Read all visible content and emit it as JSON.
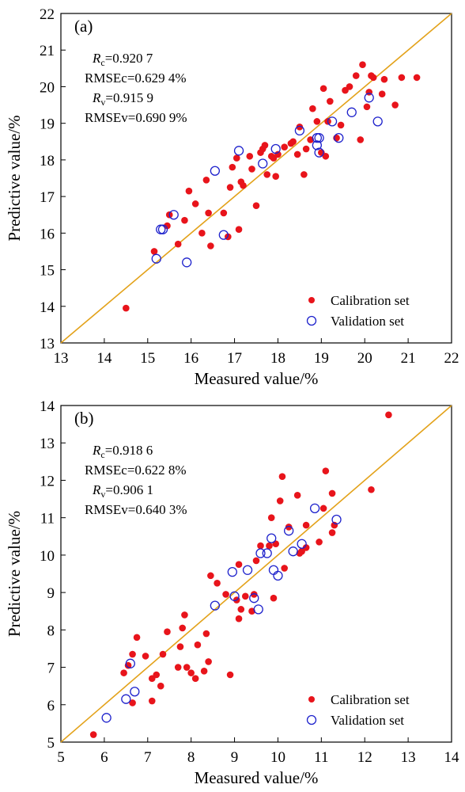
{
  "chart_data": [
    {
      "type": "scatter",
      "panel_label": "(a)",
      "xlabel": "Measured value/%",
      "ylabel": "Predictive value/%",
      "xlim": [
        13,
        22
      ],
      "ylim": [
        13,
        22
      ],
      "xticks": [
        "13",
        "14",
        "15",
        "16",
        "17",
        "18",
        "19",
        "20",
        "21",
        "22"
      ],
      "yticks": [
        "13",
        "14",
        "15",
        "16",
        "17",
        "18",
        "19",
        "20",
        "21",
        "22"
      ],
      "grid": false,
      "legend_position": "bottom-right",
      "reference_line": {
        "from": [
          13,
          13
        ],
        "to": [
          22,
          22
        ],
        "color": "#E3A21A"
      },
      "stats": [
        {
          "sym": "R",
          "sub": "c",
          "text": "=0.920 7"
        },
        {
          "text": "RMSEc=0.629 4%"
        },
        {
          "sym": "R",
          "sub": "v",
          "text": "=0.915 9"
        },
        {
          "text": "RMSEv=0.690 9%"
        }
      ],
      "series": [
        {
          "name": "Calibration set",
          "marker": "filled-circle",
          "color": "#E8141B",
          "points": [
            [
              14.5,
              13.95
            ],
            [
              15.15,
              15.5
            ],
            [
              15.45,
              16.2
            ],
            [
              15.5,
              16.5
            ],
            [
              15.7,
              15.7
            ],
            [
              15.85,
              16.35
            ],
            [
              15.95,
              17.15
            ],
            [
              16.1,
              16.8
            ],
            [
              16.25,
              16.0
            ],
            [
              16.35,
              17.45
            ],
            [
              16.4,
              16.55
            ],
            [
              16.45,
              15.65
            ],
            [
              16.75,
              16.55
            ],
            [
              16.85,
              15.9
            ],
            [
              16.9,
              17.25
            ],
            [
              16.95,
              17.8
            ],
            [
              17.05,
              18.05
            ],
            [
              17.1,
              16.1
            ],
            [
              17.15,
              17.4
            ],
            [
              17.2,
              17.3
            ],
            [
              17.35,
              18.1
            ],
            [
              17.4,
              17.75
            ],
            [
              17.5,
              16.75
            ],
            [
              17.6,
              18.2
            ],
            [
              17.65,
              18.3
            ],
            [
              17.7,
              18.4
            ],
            [
              17.75,
              17.6
            ],
            [
              17.85,
              18.1
            ],
            [
              17.9,
              18.05
            ],
            [
              17.95,
              17.55
            ],
            [
              18.0,
              18.15
            ],
            [
              18.15,
              18.35
            ],
            [
              18.3,
              18.45
            ],
            [
              18.35,
              18.5
            ],
            [
              18.45,
              18.15
            ],
            [
              18.5,
              18.9
            ],
            [
              18.6,
              17.6
            ],
            [
              18.65,
              18.3
            ],
            [
              18.75,
              18.55
            ],
            [
              18.8,
              19.4
            ],
            [
              18.9,
              19.05
            ],
            [
              19.0,
              18.2
            ],
            [
              19.05,
              19.95
            ],
            [
              19.1,
              18.1
            ],
            [
              19.15,
              19.05
            ],
            [
              19.2,
              19.6
            ],
            [
              19.35,
              18.6
            ],
            [
              19.45,
              18.95
            ],
            [
              19.55,
              19.9
            ],
            [
              19.65,
              20.0
            ],
            [
              19.8,
              20.3
            ],
            [
              19.9,
              18.55
            ],
            [
              19.95,
              20.6
            ],
            [
              20.05,
              19.45
            ],
            [
              20.1,
              19.85
            ],
            [
              20.15,
              20.3
            ],
            [
              20.2,
              20.25
            ],
            [
              20.4,
              19.8
            ],
            [
              20.45,
              20.2
            ],
            [
              20.7,
              19.5
            ],
            [
              20.85,
              20.25
            ],
            [
              21.2,
              20.25
            ]
          ]
        },
        {
          "name": "Validation set",
          "marker": "open-circle",
          "color": "#1E22CC",
          "points": [
            [
              15.2,
              15.3
            ],
            [
              15.3,
              16.1
            ],
            [
              15.35,
              16.1
            ],
            [
              15.6,
              16.5
            ],
            [
              15.9,
              15.2
            ],
            [
              16.55,
              17.7
            ],
            [
              16.75,
              15.95
            ],
            [
              17.1,
              18.25
            ],
            [
              17.65,
              17.9
            ],
            [
              17.95,
              18.3
            ],
            [
              18.5,
              18.8
            ],
            [
              18.9,
              18.6
            ],
            [
              18.9,
              18.4
            ],
            [
              18.95,
              18.2
            ],
            [
              18.95,
              18.6
            ],
            [
              19.25,
              19.05
            ],
            [
              19.4,
              18.6
            ],
            [
              19.7,
              19.3
            ],
            [
              20.1,
              19.7
            ],
            [
              20.3,
              19.05
            ]
          ]
        }
      ]
    },
    {
      "type": "scatter",
      "panel_label": "(b)",
      "xlabel": "Measured value/%",
      "ylabel": "Predictive value/%",
      "xlim": [
        5,
        14
      ],
      "ylim": [
        5,
        14
      ],
      "xticks": [
        "5",
        "6",
        "7",
        "8",
        "9",
        "10",
        "11",
        "12",
        "13",
        "14"
      ],
      "yticks": [
        "5",
        "6",
        "7",
        "8",
        "9",
        "10",
        "11",
        "12",
        "13",
        "14"
      ],
      "grid": false,
      "legend_position": "bottom-right",
      "reference_line": {
        "from": [
          5,
          5
        ],
        "to": [
          14,
          14
        ],
        "color": "#E3A21A"
      },
      "stats": [
        {
          "sym": "R",
          "sub": "c",
          "text": "=0.918 6"
        },
        {
          "text": "RMSEc=0.622 8%"
        },
        {
          "sym": "R",
          "sub": "v",
          "text": "=0.906 1"
        },
        {
          "text": "RMSEv=0.640 3%"
        }
      ],
      "series": [
        {
          "name": "Calibration set",
          "marker": "filled-circle",
          "color": "#E8141B",
          "points": [
            [
              5.75,
              5.2
            ],
            [
              6.45,
              6.85
            ],
            [
              6.55,
              7.05
            ],
            [
              6.65,
              7.35
            ],
            [
              6.65,
              6.05
            ],
            [
              6.75,
              7.8
            ],
            [
              6.95,
              7.3
            ],
            [
              7.1,
              6.1
            ],
            [
              7.1,
              6.7
            ],
            [
              7.2,
              6.8
            ],
            [
              7.3,
              6.5
            ],
            [
              7.35,
              7.35
            ],
            [
              7.45,
              7.95
            ],
            [
              7.7,
              7.0
            ],
            [
              7.75,
              7.55
            ],
            [
              7.8,
              8.05
            ],
            [
              7.85,
              8.4
            ],
            [
              7.9,
              7.0
            ],
            [
              8.0,
              6.85
            ],
            [
              8.1,
              6.7
            ],
            [
              8.15,
              7.6
            ],
            [
              8.3,
              6.9
            ],
            [
              8.35,
              7.9
            ],
            [
              8.4,
              7.15
            ],
            [
              8.45,
              9.45
            ],
            [
              8.6,
              9.25
            ],
            [
              8.8,
              8.95
            ],
            [
              8.9,
              6.8
            ],
            [
              9.05,
              8.8
            ],
            [
              9.1,
              9.75
            ],
            [
              9.1,
              8.3
            ],
            [
              9.15,
              8.55
            ],
            [
              9.25,
              8.9
            ],
            [
              9.4,
              8.5
            ],
            [
              9.45,
              8.95
            ],
            [
              9.5,
              9.85
            ],
            [
              9.6,
              10.25
            ],
            [
              9.8,
              10.25
            ],
            [
              9.85,
              11.0
            ],
            [
              9.9,
              8.85
            ],
            [
              9.95,
              10.3
            ],
            [
              10.05,
              11.45
            ],
            [
              10.1,
              12.1
            ],
            [
              10.15,
              9.65
            ],
            [
              10.25,
              10.75
            ],
            [
              10.45,
              11.6
            ],
            [
              10.5,
              10.05
            ],
            [
              10.55,
              10.1
            ],
            [
              10.65,
              10.2
            ],
            [
              10.65,
              10.8
            ],
            [
              10.95,
              10.35
            ],
            [
              11.05,
              11.25
            ],
            [
              11.1,
              12.25
            ],
            [
              11.25,
              11.65
            ],
            [
              11.25,
              10.6
            ],
            [
              11.3,
              10.8
            ],
            [
              12.15,
              11.75
            ],
            [
              12.55,
              13.75
            ]
          ]
        },
        {
          "name": "Validation set",
          "marker": "open-circle",
          "color": "#1E22CC",
          "points": [
            [
              6.05,
              5.65
            ],
            [
              6.5,
              6.15
            ],
            [
              6.6,
              7.1
            ],
            [
              6.7,
              6.35
            ],
            [
              8.55,
              8.65
            ],
            [
              8.95,
              9.55
            ],
            [
              9.0,
              8.9
            ],
            [
              9.3,
              9.6
            ],
            [
              9.45,
              8.85
            ],
            [
              9.55,
              8.55
            ],
            [
              9.6,
              10.05
            ],
            [
              9.75,
              10.05
            ],
            [
              9.85,
              10.45
            ],
            [
              9.9,
              9.6
            ],
            [
              10.0,
              9.45
            ],
            [
              10.25,
              10.65
            ],
            [
              10.35,
              10.1
            ],
            [
              10.55,
              10.3
            ],
            [
              10.85,
              11.25
            ],
            [
              11.35,
              10.95
            ]
          ]
        }
      ]
    }
  ]
}
